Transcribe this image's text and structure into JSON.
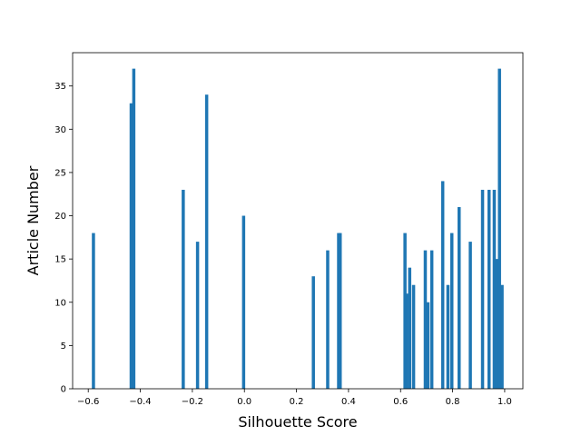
{
  "chart_data": {
    "type": "bar",
    "title": "",
    "xlabel": "Silhouette Score",
    "ylabel": "Article Number",
    "xlim": [
      -0.66,
      1.07
    ],
    "ylim": [
      0,
      38.85
    ],
    "xticks": [
      -0.6,
      -0.4,
      -0.2,
      0.0,
      0.2,
      0.4,
      0.6,
      0.8,
      1.0
    ],
    "xtick_labels": [
      "−0.6",
      "−0.4",
      "−0.2",
      "0.0",
      "0.2",
      "0.4",
      "0.6",
      "0.8",
      "1.0"
    ],
    "yticks": [
      0,
      5,
      10,
      15,
      20,
      25,
      30,
      35
    ],
    "ytick_labels": [
      "0",
      "5",
      "10",
      "15",
      "20",
      "25",
      "30",
      "35"
    ],
    "grid": false,
    "legend": "none",
    "bar_color": "#1f77b4",
    "series": [
      {
        "x": [
          -0.58,
          -0.435,
          -0.425,
          -0.235,
          -0.18,
          -0.145,
          -0.003,
          0.265,
          0.32,
          0.362,
          0.368,
          0.617,
          0.623,
          0.635,
          0.65,
          0.695,
          0.705,
          0.72,
          0.762,
          0.782,
          0.797,
          0.825,
          0.868,
          0.915,
          0.94,
          0.96,
          0.97,
          0.98,
          0.99
        ],
        "values": [
          18,
          33,
          37,
          23,
          17,
          34,
          20,
          13,
          16,
          18,
          18,
          18,
          11,
          14,
          12,
          16,
          10,
          16,
          24,
          12,
          18,
          21,
          17,
          23,
          23,
          23,
          15,
          37,
          12
        ]
      }
    ]
  }
}
